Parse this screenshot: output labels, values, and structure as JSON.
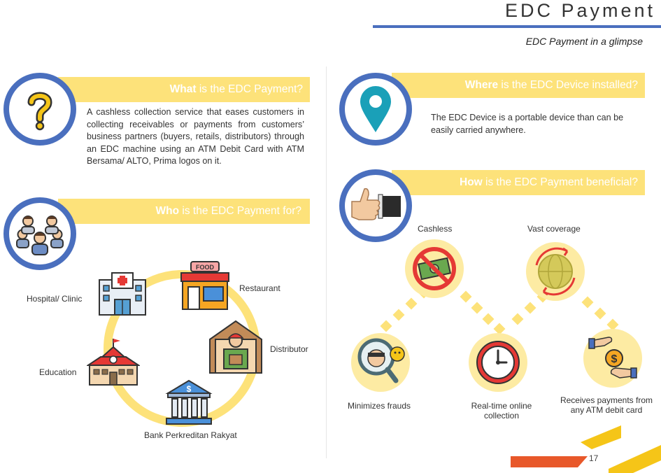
{
  "header": {
    "title": "EDC Payment",
    "subtitle": "EDC Payment in a glimpse"
  },
  "sections": {
    "what": {
      "banner_keyword": "What",
      "banner_rest": " is the EDC Payment?",
      "body": "A cashless collection service that eases customers in collecting receivables or payments from customers’ business partners (buyers, retails, distributors) through an EDC machine using an ATM Debit Card with ATM Bersama/ ALTO, Prima logos on it.",
      "icon": "question-mark-icon"
    },
    "who": {
      "banner_keyword": "Who",
      "banner_rest": " is the EDC Payment for?",
      "icon": "people-group-icon",
      "segments": [
        "Hospital/ Clinic",
        "Restaurant",
        "Distributor",
        "Education",
        "Bank Perkreditan Rakyat"
      ]
    },
    "where": {
      "banner_keyword": "Where",
      "banner_rest": " is the EDC Device installed?",
      "body": "The EDC Device is a portable device than can be easily carried anywhere.",
      "icon": "location-pin-icon"
    },
    "how": {
      "banner_keyword": "How",
      "banner_rest": " is the EDC Payment beneficial?",
      "icon": "thumbs-up-icon",
      "benefits": {
        "cashless": "Cashless",
        "vast_coverage": "Vast coverage",
        "minimizes_frauds": "Minimizes frauds",
        "realtime": "Real-time online collection",
        "receives": "Receives payments from any ATM debit card"
      }
    }
  },
  "icons": {
    "food_sign": "FOOD"
  },
  "colors": {
    "accent_blue": "#4a6fbe",
    "banner_yellow": "#fde27a",
    "pale_yellow": "#fdeba3",
    "orange": "#f08a1c"
  },
  "footer": {
    "page_number": "17"
  }
}
